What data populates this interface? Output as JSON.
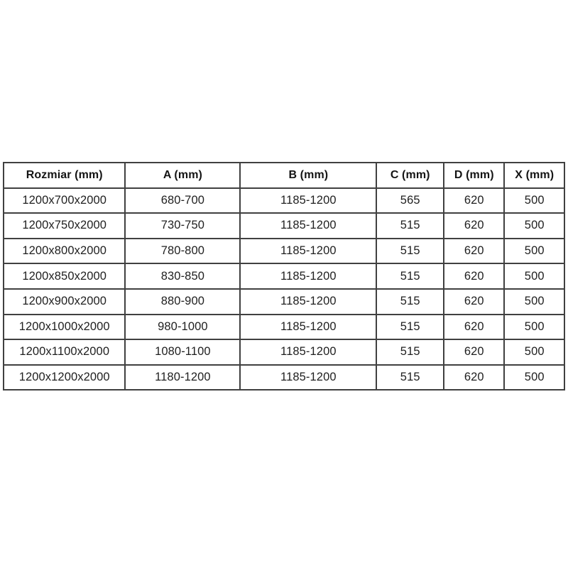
{
  "table": {
    "title_semantic": "shower-enclosure-dimensions",
    "columns": [
      {
        "label": "Rozmiar (mm)"
      },
      {
        "label": "A (mm)"
      },
      {
        "label": "B (mm)"
      },
      {
        "label": "C (mm)"
      },
      {
        "label": "D (mm)"
      },
      {
        "label": "X (mm)"
      }
    ],
    "rows": [
      [
        "1200x700x2000",
        "680-700",
        "1185-1200",
        "565",
        "620",
        "500"
      ],
      [
        "1200x750x2000",
        "730-750",
        "1185-1200",
        "515",
        "620",
        "500"
      ],
      [
        "1200x800x2000",
        "780-800",
        "1185-1200",
        "515",
        "620",
        "500"
      ],
      [
        "1200x850x2000",
        "830-850",
        "1185-1200",
        "515",
        "620",
        "500"
      ],
      [
        "1200x900x2000",
        "880-900",
        "1185-1200",
        "515",
        "620",
        "500"
      ],
      [
        "1200x1000x2000",
        "980-1000",
        "1185-1200",
        "515",
        "620",
        "500"
      ],
      [
        "1200x1100x2000",
        "1080-1100",
        "1185-1200",
        "515",
        "620",
        "500"
      ],
      [
        "1200x1200x2000",
        "1180-1200",
        "1185-1200",
        "515",
        "620",
        "500"
      ]
    ],
    "colors": {
      "border": "#404040",
      "text": "#1f1f1f",
      "background": "#ffffff"
    }
  }
}
